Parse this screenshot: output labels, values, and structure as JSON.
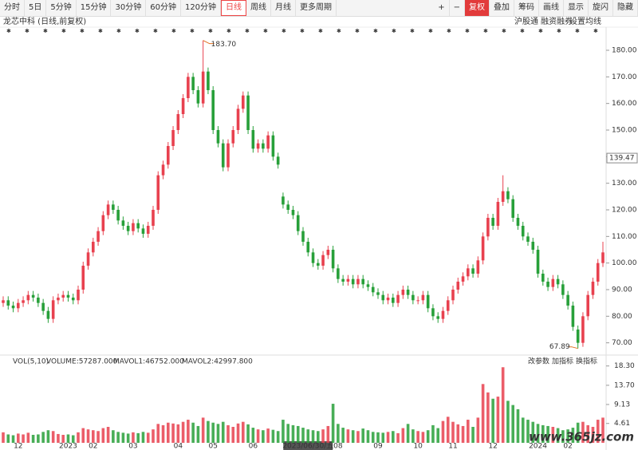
{
  "toolbar": {
    "periods": [
      "分时",
      "5日",
      "5分钟",
      "15分钟",
      "30分钟",
      "60分钟",
      "120分钟",
      "日线",
      "周线",
      "月线",
      "更多周期"
    ],
    "active": "日线",
    "tools": [
      "+",
      "−",
      "复权",
      "叠加",
      "筹码",
      "画线",
      "显示",
      "旋闪",
      "隐藏"
    ],
    "highlighted": "复权"
  },
  "header": {
    "title": "龙芯中科 (日线,前复权)",
    "links": [
      "沪股通",
      "融资融券",
      "设置均线"
    ]
  },
  "watermark": "www.365jz.com",
  "chart_data": [
    {
      "type": "candlestick",
      "up_color": "#e8414f",
      "down_color": "#28a03a",
      "categories": [
        null,
        null,
        null,
        "12",
        null,
        null,
        null,
        null,
        null,
        null,
        null,
        null,
        null,
        "2023",
        null,
        null,
        null,
        null,
        "02",
        null,
        null,
        null,
        null,
        null,
        null,
        null,
        "03",
        null,
        null,
        null,
        null,
        null,
        null,
        null,
        null,
        "04",
        null,
        null,
        null,
        null,
        null,
        null,
        "05",
        null,
        null,
        null,
        null,
        null,
        null,
        null,
        "06",
        null,
        null,
        null,
        null,
        null,
        null,
        null,
        null,
        null,
        null,
        "2023/06/30/五",
        null,
        null,
        null,
        null,
        null,
        "08",
        null,
        null,
        null,
        null,
        null,
        null,
        null,
        "09",
        null,
        null,
        null,
        null,
        null,
        null,
        null,
        "10",
        null,
        null,
        null,
        null,
        null,
        null,
        "11",
        null,
        null,
        null,
        null,
        null,
        null,
        null,
        "12",
        null,
        null,
        null,
        null,
        null,
        null,
        null,
        null,
        "2024",
        null,
        null,
        null,
        null,
        null,
        "02",
        null,
        null,
        null,
        null,
        null,
        null,
        null
      ],
      "open": [
        85,
        86,
        84,
        83,
        85,
        86,
        88,
        87,
        85,
        82,
        79,
        86,
        87,
        88,
        87,
        86,
        90,
        99,
        104,
        108,
        112,
        118,
        122,
        120,
        116,
        114,
        112,
        115,
        113,
        111,
        114,
        120,
        133,
        137,
        144,
        150,
        156,
        162,
        170,
        165,
        160,
        172,
        165,
        150,
        145,
        136,
        145,
        150,
        158,
        163,
        150,
        143,
        145,
        143,
        148,
        140,
        125,
        122,
        120,
        118,
        112,
        108,
        104,
        100,
        99,
        103,
        105,
        98,
        94,
        93,
        94,
        92,
        94,
        92,
        91,
        89,
        88,
        86,
        87,
        85,
        88,
        90,
        88,
        86,
        86,
        88,
        83,
        80,
        79,
        82,
        86,
        90,
        93,
        95,
        98,
        96,
        101,
        110,
        117,
        114,
        123,
        127,
        124,
        117,
        114,
        110,
        108,
        105,
        96,
        93,
        91,
        94,
        92,
        88,
        84,
        75,
        70,
        80,
        88,
        93,
        100
      ],
      "high": [
        87.5,
        87.5,
        85.5,
        86.5,
        87.5,
        89.5,
        89.5,
        88.5,
        86.5,
        83.5,
        87.5,
        88.5,
        89.5,
        89.5,
        88.5,
        91.5,
        100.5,
        105.5,
        109.5,
        113.5,
        119.5,
        123.5,
        123.5,
        121.5,
        117.5,
        115.5,
        116.5,
        116.5,
        114.5,
        115.5,
        121.5,
        134.5,
        138.5,
        145.5,
        151.5,
        157.5,
        163.5,
        171.5,
        171.5,
        166.5,
        183.7,
        173.5,
        166.5,
        151.5,
        146.5,
        146.5,
        151.5,
        159.5,
        164.5,
        164.5,
        151.5,
        146.5,
        146.5,
        149.5,
        149.5,
        141.5,
        126.5,
        123.5,
        121.5,
        119.5,
        113.5,
        109.5,
        105.5,
        101.5,
        104.5,
        106.5,
        106.5,
        99.5,
        95.5,
        95.5,
        95.5,
        95.5,
        95.5,
        93.5,
        92.5,
        90.5,
        89.5,
        88.5,
        88.5,
        89.5,
        91.5,
        91.5,
        89.5,
        87.5,
        89.5,
        89.5,
        84.5,
        81.5,
        83.5,
        87.5,
        91.5,
        94.5,
        96.5,
        99.5,
        99.5,
        102.5,
        111.5,
        118.5,
        118.5,
        124.5,
        133,
        128.5,
        125.5,
        118.5,
        115.5,
        111.5,
        109.5,
        106.5,
        97.5,
        94.5,
        95.5,
        95.5,
        93.5,
        89.5,
        85.5,
        76.5,
        81.5,
        89.5,
        94.5,
        101.5,
        108
      ],
      "low": [
        83.5,
        82.5,
        81.5,
        81.5,
        83.5,
        84.5,
        85.5,
        83.5,
        80.5,
        77.5,
        77.5,
        84.5,
        85.5,
        85.5,
        84.5,
        84.5,
        88.5,
        97.5,
        102.5,
        106.5,
        110.5,
        116.5,
        118.5,
        114.5,
        112.5,
        110.5,
        110.5,
        111.5,
        109.5,
        109.5,
        112.5,
        118.5,
        131.5,
        135.5,
        142.5,
        148.5,
        154.5,
        160.5,
        163.5,
        158.5,
        158.5,
        163.5,
        148.5,
        143.5,
        134.5,
        134.5,
        143.5,
        148.5,
        156.5,
        148.5,
        141.5,
        141.5,
        141.5,
        141.5,
        138.5,
        135.5,
        120.5,
        118.5,
        116.5,
        110.5,
        106.5,
        102.5,
        98.5,
        97.5,
        97.5,
        101.5,
        96.5,
        92.5,
        91.5,
        91.5,
        90.5,
        90.5,
        90.5,
        89.5,
        87.5,
        86.5,
        84.5,
        84.5,
        83.5,
        83.5,
        86.5,
        86.5,
        84.5,
        84.5,
        84.5,
        81.5,
        78.5,
        77.5,
        77.5,
        80.5,
        84.5,
        88.5,
        91.5,
        93.5,
        94.5,
        94.5,
        99.5,
        108.5,
        112.5,
        112.5,
        121.5,
        122.5,
        115.5,
        112.5,
        108.5,
        106.5,
        103.5,
        94.5,
        91.5,
        89.5,
        89.5,
        90.5,
        86.5,
        82.5,
        74.5,
        67.89,
        68.5,
        78.5,
        86.5,
        91.5,
        98.5
      ],
      "close": [
        86,
        84,
        83,
        85,
        86,
        88,
        87,
        85,
        82,
        79,
        86,
        87,
        88,
        87,
        86,
        90,
        99,
        104,
        108,
        112,
        118,
        122,
        120,
        116,
        114,
        112,
        115,
        113,
        111,
        114,
        120,
        133,
        137,
        144,
        150,
        156,
        162,
        170,
        165,
        160,
        172,
        165,
        150,
        145,
        136,
        145,
        150,
        158,
        163,
        150,
        143,
        145,
        143,
        148,
        140,
        137,
        122,
        120,
        118,
        112,
        108,
        104,
        100,
        99,
        103,
        105,
        98,
        94,
        93,
        94,
        92,
        94,
        92,
        91,
        89,
        88,
        86,
        87,
        85,
        88,
        90,
        88,
        86,
        86,
        88,
        83,
        80,
        79,
        82,
        86,
        90,
        93,
        95,
        98,
        96,
        101,
        110,
        117,
        114,
        123,
        127,
        124,
        117,
        114,
        110,
        108,
        105,
        96,
        93,
        91,
        94,
        92,
        88,
        84,
        76,
        70,
        80,
        88,
        93,
        100,
        104
      ],
      "ylim": [
        66,
        186
      ],
      "yticks": [
        {
          "value": 70,
          "label": "70.00"
        },
        {
          "value": 80,
          "label": "80.00"
        },
        {
          "value": 90,
          "label": "90.00"
        },
        {
          "value": 100,
          "label": "100.00"
        },
        {
          "value": 110,
          "label": "110.00"
        },
        {
          "value": 120,
          "label": "120.00"
        },
        {
          "value": 130,
          "label": "130.00"
        },
        {
          "value": 140,
          "label": "140.00"
        },
        {
          "value": 150,
          "label": "150.00"
        },
        {
          "value": 160,
          "label": "160.00"
        },
        {
          "value": 170,
          "label": "170.00"
        },
        {
          "value": 180,
          "label": "180.00"
        }
      ],
      "max_label": "183.70",
      "min_label": "67.89",
      "cursor": {
        "value": 139.47,
        "label": "139.47"
      }
    },
    {
      "type": "bar",
      "title": "VOL(5,10)",
      "legend": [
        "VOLUME:57287.000",
        "MAVOL1:46752.000",
        "MAVOL2:42997.800"
      ],
      "legend_colors": [
        "#1a1aa0",
        "#cc33cc",
        "#777"
      ],
      "buttons": [
        "改参数",
        "加指标",
        "换指标"
      ],
      "values": [
        2.5,
        2,
        1.8,
        2.2,
        2,
        2.4,
        1.9,
        2,
        2.6,
        3,
        2.8,
        2.1,
        1.9,
        2,
        1.8,
        2.5,
        3.5,
        3.2,
        3,
        2.8,
        3.5,
        3.8,
        3,
        2.6,
        2.4,
        2.2,
        2.5,
        2.3,
        2.6,
        2.4,
        3.2,
        4.5,
        4.2,
        4.8,
        4.6,
        4.4,
        5,
        5.5,
        4.8,
        4,
        6,
        5.2,
        4.8,
        4.5,
        5,
        4.2,
        3.8,
        4.6,
        5,
        4.4,
        3.6,
        3.2,
        3,
        3.4,
        3.1,
        2.8,
        5.5,
        4.5,
        4.2,
        4,
        3.6,
        3.2,
        3,
        2.8,
        3.2,
        4,
        9.3,
        4.5,
        3.6,
        3.2,
        3,
        2.8,
        3.4,
        3,
        2.6,
        2.5,
        2.4,
        2.6,
        2.8,
        2.3,
        3.5,
        4.5,
        3.2,
        2.8,
        2.6,
        3,
        4.2,
        3.5,
        5.2,
        6.2,
        5,
        4.4,
        4,
        5.5,
        3.8,
        6,
        14,
        12,
        10.5,
        11,
        18,
        10,
        9,
        8,
        6,
        5.5,
        5,
        4.5,
        4.2,
        4,
        3.8,
        3.5,
        3,
        3.2,
        3.6,
        4.8,
        5,
        4.2,
        3.8,
        5.5,
        6
      ],
      "ylim": [
        0,
        19
      ],
      "yticks": [
        4.61,
        9.13,
        {
          "value": 13.7,
          "label": "13.70"
        },
        {
          "value": 18.3,
          "label": "18.30"
        }
      ]
    }
  ]
}
